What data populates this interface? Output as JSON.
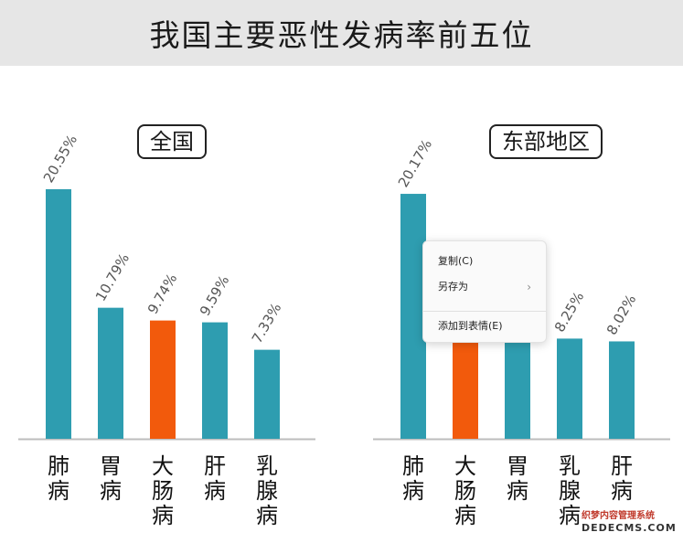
{
  "title": "我国主要恶性发病率前五位",
  "chart_data": [
    {
      "type": "bar",
      "title": "全国",
      "categories": [
        "肺病",
        "胃病",
        "大肠病",
        "肝病",
        "乳腺病"
      ],
      "values": [
        20.55,
        10.79,
        9.74,
        9.59,
        7.33
      ],
      "value_labels": [
        "20.55%",
        "10.79%",
        "9.74%",
        "9.59%",
        "7.33%"
      ],
      "highlight_index": 2,
      "ylim": [
        0,
        25
      ]
    },
    {
      "type": "bar",
      "title": "东部地区",
      "categories": [
        "肺病",
        "大肠病",
        "胃病",
        "乳腺病",
        "肝病"
      ],
      "values": [
        20.17,
        10.3,
        9.9,
        8.25,
        8.02
      ],
      "value_labels": [
        "20.17%",
        "",
        "",
        "8.25%",
        "8.02%"
      ],
      "highlight_index": 1,
      "ylim": [
        0,
        25
      ]
    }
  ],
  "colors": {
    "bar": "#2e9db0",
    "highlight": "#f25a0c",
    "axis": "#bdbdbd"
  },
  "context_menu": {
    "items": [
      {
        "label": "复制(C)"
      },
      {
        "label": "另存为",
        "submenu_icon": "chevron-right-icon"
      },
      {
        "label": "添加到表情(E)"
      }
    ]
  },
  "watermark": {
    "line1": "织梦内容管理系统",
    "line2": "DEDECMS.COM"
  }
}
